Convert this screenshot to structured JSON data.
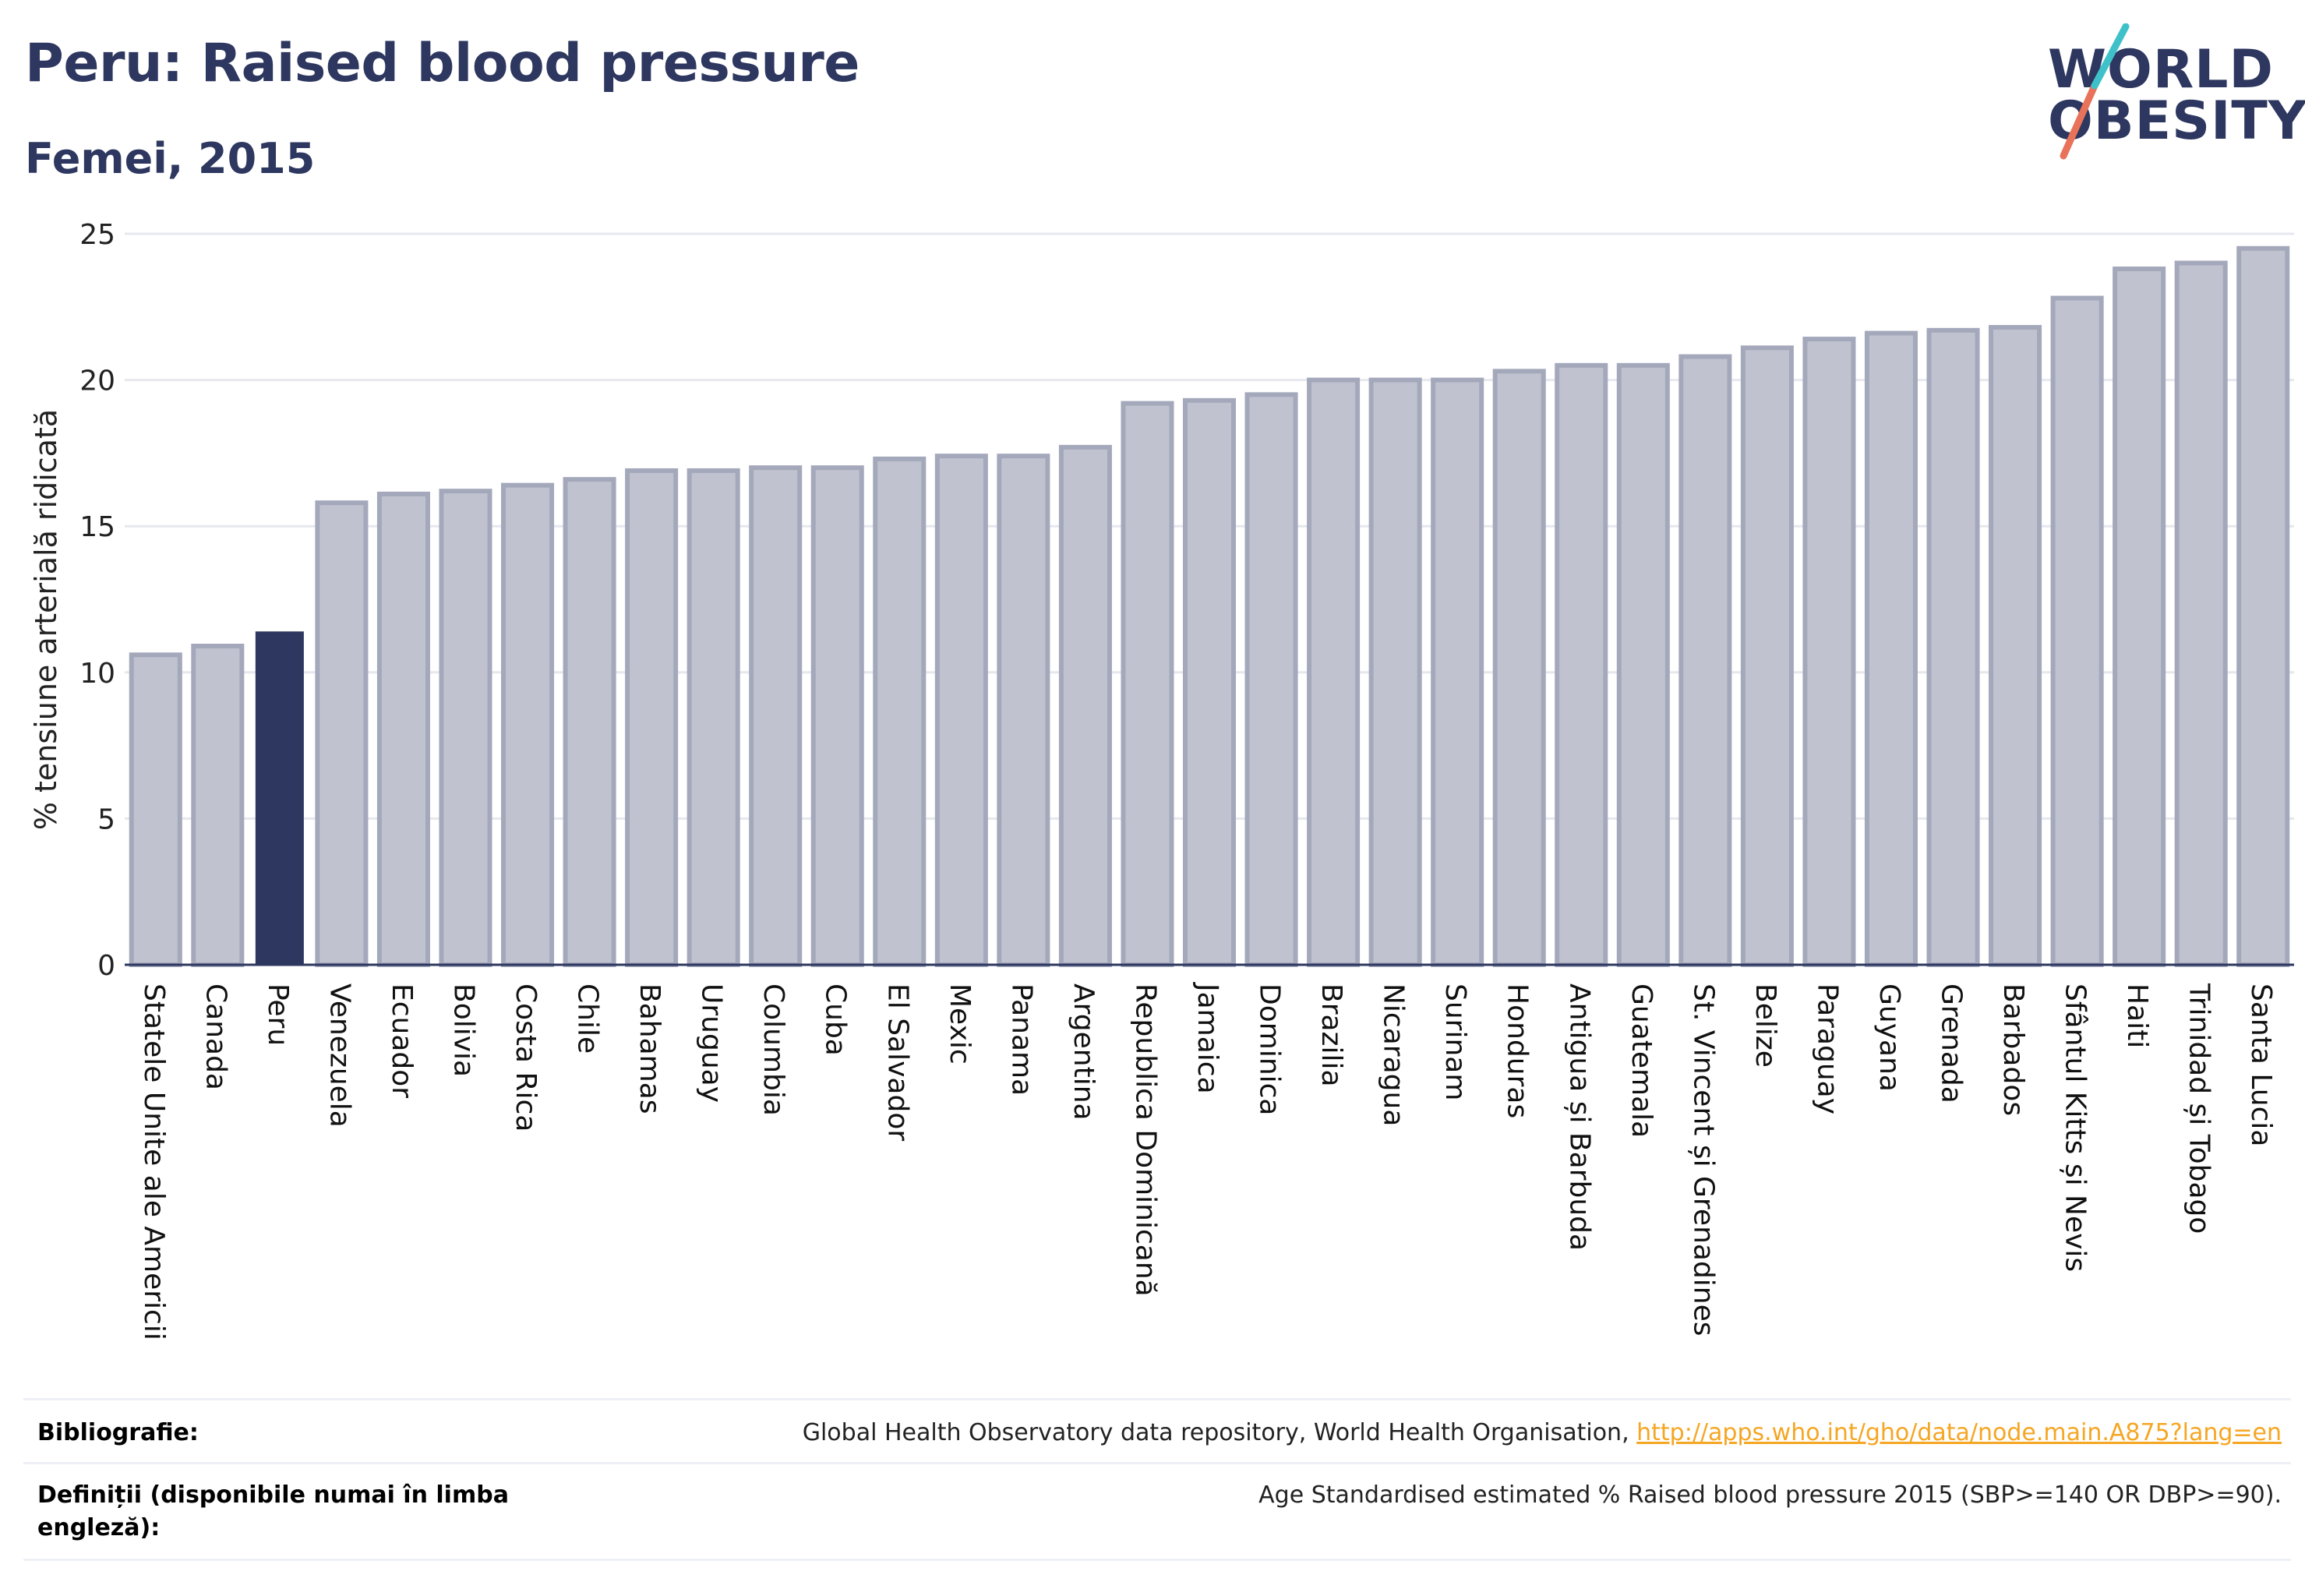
{
  "header": {
    "title": "Peru: Raised blood pressure",
    "subtitle": "Femei, 2015"
  },
  "logo": {
    "line1": "WORLD",
    "line2": "OBESITY",
    "icon": "world-obesity-slash-logo",
    "accent_colors": [
      "#e8735a",
      "#3fc1c9"
    ]
  },
  "colors": {
    "highlight_bar": "#2d375f",
    "bar_fill": "#c0c3cf",
    "bar_stroke": "#a4a8bb",
    "grid": "#e6e8ee",
    "axis": "#2d375f"
  },
  "chart_data": {
    "type": "bar",
    "ylabel": "% tensiune arterială ridicată",
    "xlabel": "",
    "ylim": [
      0,
      25
    ],
    "yticks": [
      0,
      5,
      10,
      15,
      20,
      25
    ],
    "grid": true,
    "highlight": "Peru",
    "categories": [
      "Statele Unite ale Americii",
      "Canada",
      "Peru",
      "Venezuela",
      "Ecuador",
      "Bolivia",
      "Costa Rica",
      "Chile",
      "Bahamas",
      "Uruguay",
      "Columbia",
      "Cuba",
      "El Salvador",
      "Mexic",
      "Panama",
      "Argentina",
      "Republica Dominicană",
      "Jamaica",
      "Dominica",
      "Brazilia",
      "Nicaragua",
      "Surinam",
      "Honduras",
      "Antigua și Barbuda",
      "Guatemala",
      "St. Vincent și Grenadines",
      "Belize",
      "Paraguay",
      "Guyana",
      "Grenada",
      "Barbados",
      "Sfântul Kitts și Nevis",
      "Haiti",
      "Trinidad și Tobago",
      "Santa Lucia"
    ],
    "values": [
      10.6,
      10.9,
      11.4,
      15.8,
      16.1,
      16.2,
      16.4,
      16.6,
      16.9,
      16.9,
      17.0,
      17.0,
      17.3,
      17.4,
      17.4,
      17.7,
      19.2,
      19.3,
      19.5,
      20.0,
      20.0,
      20.0,
      20.3,
      20.5,
      20.5,
      20.8,
      21.1,
      21.4,
      21.6,
      21.7,
      21.8,
      22.8,
      23.8,
      24.0,
      24.5
    ]
  },
  "footer": {
    "bibliography_label": "Bibliografie:",
    "bibliography_text": "Global Health Observatory data repository, World Health Organisation, ",
    "bibliography_link": "http://apps.who.int/gho/data/node.main.A875?lang=en",
    "definitions_label": "Definiții (disponibile numai în limba engleză):",
    "definitions_text": "Age Standardised estimated % Raised blood pressure 2015 (SBP>=140 OR DBP>=90)."
  }
}
